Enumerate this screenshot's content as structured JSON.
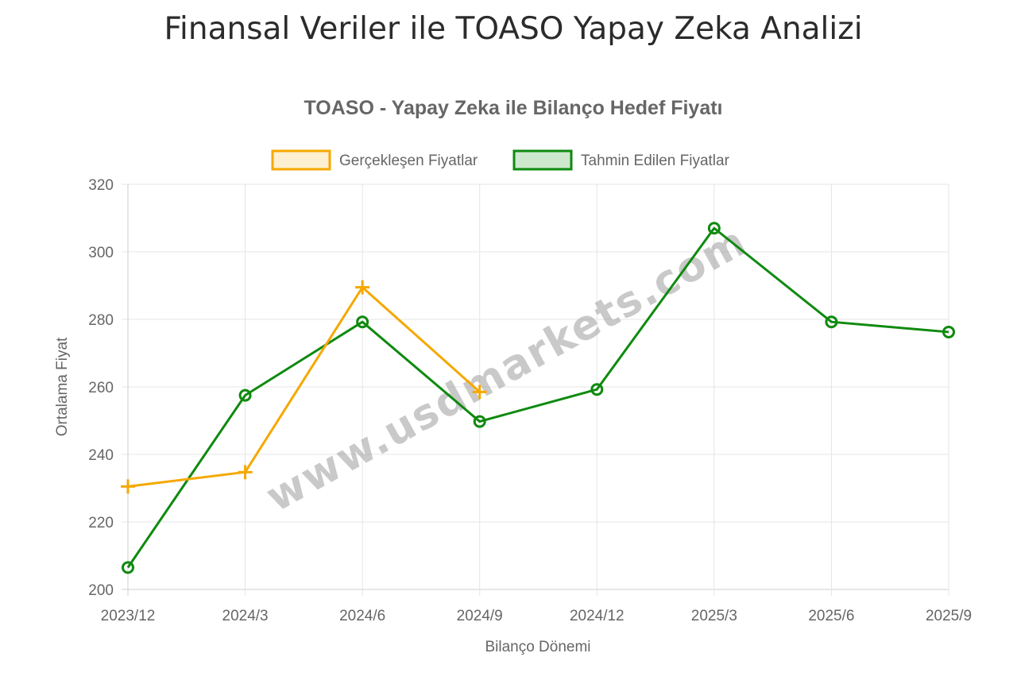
{
  "page": {
    "title": "Finansal Veriler ile TOASO Yapay Zeka Analizi"
  },
  "watermark": "www.usdmarkets.com",
  "chart_data": {
    "type": "line",
    "title": "TOASO - Yapay Zeka ile Bilanço Hedef Fiyatı",
    "xlabel": "Bilanço Dönemi",
    "ylabel": "Ortalama Fiyat",
    "ylim": [
      200,
      320
    ],
    "yticks": [
      200,
      220,
      240,
      260,
      280,
      300,
      320
    ],
    "grid": true,
    "legend_position": "top",
    "categories": [
      "2023/12",
      "2024/3",
      "2024/6",
      "2024/9",
      "2024/12",
      "2025/3",
      "2025/6",
      "2025/9"
    ],
    "series": [
      {
        "name": "Gerçekleşen Fiyatlar",
        "color": "#f5a800",
        "fill": "#fdf0d0",
        "marker": "cross",
        "values": [
          230.5,
          234.75,
          289.5,
          258.5,
          null,
          null,
          null,
          null
        ]
      },
      {
        "name": "Tahmin Edilen Fiyatlar",
        "color": "#0f8a0f",
        "fill": "#cde8cd",
        "marker": "circle",
        "values": [
          206.5,
          257.5,
          279.25,
          249.75,
          259.25,
          307.0,
          279.25,
          276.25
        ]
      }
    ]
  }
}
